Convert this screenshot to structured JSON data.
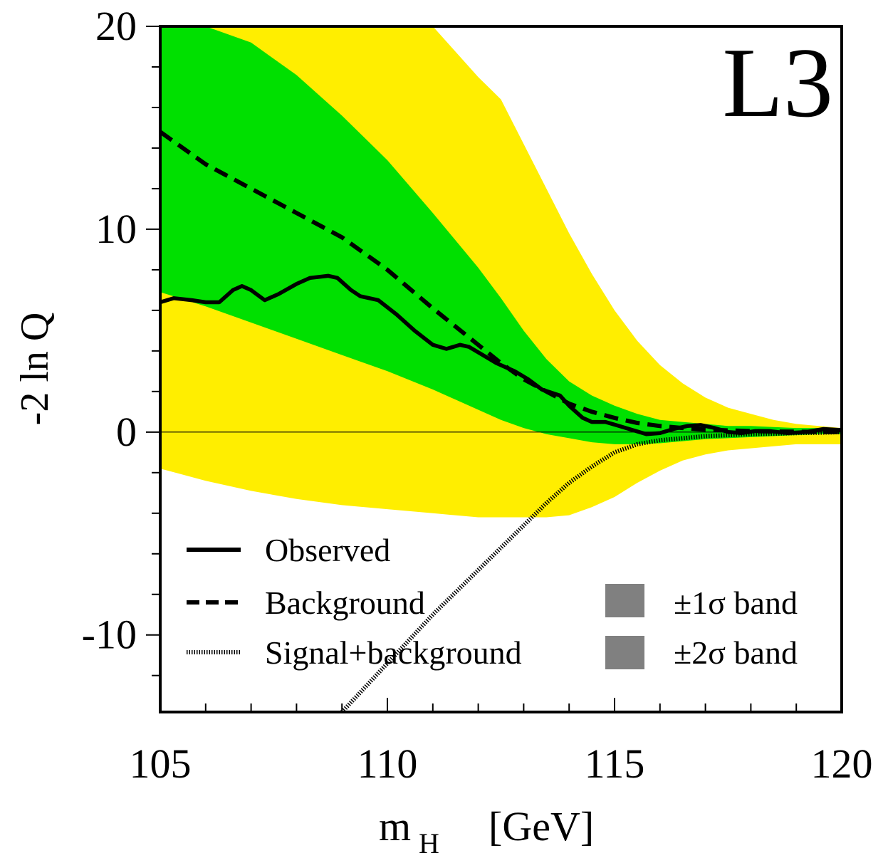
{
  "chart_data": {
    "type": "line",
    "title": "",
    "experiment_label": "L3",
    "xlabel": "m",
    "xlabel_sub": "H",
    "xlabel_unit": "[GeV]",
    "ylabel": "-2 ln Q",
    "xlim": [
      105,
      120
    ],
    "ylim": [
      -13.8,
      20
    ],
    "x_ticks": [
      {
        "value": 105,
        "label": "105"
      },
      {
        "value": 110,
        "label": "110"
      },
      {
        "value": 115,
        "label": "115"
      },
      {
        "value": 120,
        "label": "120"
      }
    ],
    "y_ticks": [
      {
        "value": -10,
        "label": "-10"
      },
      {
        "value": 0,
        "label": "0"
      },
      {
        "value": 10,
        "label": "10"
      },
      {
        "value": 20,
        "label": "20"
      }
    ],
    "x_minor_step": 1,
    "y_minor_step": 2,
    "zero_line": true,
    "colors": {
      "band_1sigma": "#00e000",
      "band_2sigma": "#ffee00",
      "legend_swatch": "#808080",
      "line": "#000000"
    },
    "bands": {
      "two_sigma": {
        "name": "±2σ band",
        "x": [
          105,
          106,
          107,
          108,
          109,
          110,
          111,
          112,
          112.5,
          113,
          113.5,
          114,
          114.5,
          115,
          115.5,
          116,
          116.5,
          117,
          117.5,
          118,
          118.5,
          119,
          119.5,
          120
        ],
        "upper": [
          20,
          20,
          20,
          20,
          20,
          20,
          20,
          17.5,
          16.4,
          14.2,
          12.0,
          9.8,
          7.8,
          6.0,
          4.5,
          3.3,
          2.4,
          1.7,
          1.2,
          0.9,
          0.6,
          0.4,
          0.3,
          0.2
        ],
        "lower": [
          -1.8,
          -2.4,
          -2.9,
          -3.3,
          -3.6,
          -3.8,
          -4.0,
          -4.2,
          -4.2,
          -4.2,
          -4.2,
          -4.1,
          -3.7,
          -3.2,
          -2.5,
          -1.9,
          -1.4,
          -1.1,
          -0.9,
          -0.8,
          -0.7,
          -0.6,
          -0.6,
          -0.6
        ]
      },
      "one_sigma": {
        "name": "±1σ band",
        "x": [
          105,
          106,
          107,
          108,
          109,
          110,
          111,
          112,
          112.5,
          113,
          113.5,
          114,
          114.5,
          115,
          115.5,
          116,
          116.5,
          117,
          117.5,
          118,
          118.5,
          119,
          119.5,
          120
        ],
        "upper": [
          20,
          20,
          19.2,
          17.6,
          15.6,
          13.4,
          10.8,
          8.1,
          6.6,
          5.0,
          3.6,
          2.5,
          1.8,
          1.3,
          0.9,
          0.6,
          0.5,
          0.4,
          0.3,
          0.3,
          0.25,
          0.2,
          0.2,
          0.15
        ],
        "lower": [
          6.9,
          6.2,
          5.4,
          4.6,
          3.8,
          3.0,
          2.1,
          1.1,
          0.6,
          0.2,
          -0.1,
          -0.3,
          -0.5,
          -0.6,
          -0.6,
          -0.55,
          -0.45,
          -0.35,
          -0.3,
          -0.25,
          -0.2,
          -0.15,
          -0.1,
          -0.1
        ]
      }
    },
    "series": [
      {
        "name": "Observed",
        "style": "solid",
        "x": [
          105,
          105.3,
          105.7,
          106.0,
          106.3,
          106.6,
          106.8,
          107.0,
          107.3,
          107.6,
          108.0,
          108.3,
          108.7,
          108.9,
          109.2,
          109.4,
          109.8,
          110.2,
          110.6,
          111.0,
          111.3,
          111.6,
          111.8,
          112.1,
          112.4,
          112.8,
          113.1,
          113.4,
          113.8,
          114.0,
          114.3,
          114.5,
          114.8,
          115.1,
          115.4,
          115.7,
          116.0,
          116.3,
          116.6,
          116.9,
          117.2,
          117.5,
          117.8,
          118.1,
          118.4,
          118.8,
          119.2,
          119.6,
          120.0
        ],
        "y": [
          6.4,
          6.6,
          6.5,
          6.4,
          6.4,
          7.0,
          7.2,
          7.0,
          6.5,
          6.8,
          7.3,
          7.6,
          7.7,
          7.6,
          7.0,
          6.7,
          6.5,
          5.8,
          5.0,
          4.3,
          4.1,
          4.3,
          4.2,
          3.8,
          3.4,
          3.0,
          2.6,
          2.1,
          1.8,
          1.3,
          0.7,
          0.5,
          0.5,
          0.3,
          0.1,
          -0.1,
          -0.05,
          0.15,
          0.3,
          0.35,
          0.2,
          0.0,
          -0.05,
          0.05,
          0.05,
          -0.05,
          0.0,
          0.15,
          0.1
        ]
      },
      {
        "name": "Background",
        "style": "dashed",
        "x": [
          105,
          106,
          107,
          108,
          109,
          110,
          111,
          112,
          112.5,
          113,
          113.5,
          114,
          114.5,
          115,
          115.5,
          116,
          116.5,
          117,
          117.5,
          118,
          118.5,
          119,
          119.5,
          120
        ],
        "y": [
          14.8,
          13.2,
          12.0,
          10.8,
          9.6,
          8.0,
          6.1,
          4.3,
          3.4,
          2.6,
          2.0,
          1.4,
          1.0,
          0.7,
          0.45,
          0.3,
          0.2,
          0.12,
          0.08,
          0.05,
          0.03,
          0.02,
          0.01,
          0.0
        ]
      },
      {
        "name": "Signal+background",
        "style": "dotted",
        "x": [
          109.0,
          109.5,
          110.0,
          110.5,
          111.0,
          111.5,
          112.0,
          112.5,
          113.0,
          113.5,
          114.0,
          114.5,
          115.0,
          115.5,
          116.0,
          116.5,
          117.0,
          117.5,
          118.0,
          118.5,
          119.0,
          119.5,
          120.0
        ],
        "y": [
          -13.8,
          -12.6,
          -11.4,
          -10.2,
          -9.0,
          -7.9,
          -6.8,
          -5.7,
          -4.6,
          -3.5,
          -2.5,
          -1.7,
          -1.0,
          -0.6,
          -0.4,
          -0.3,
          -0.2,
          -0.15,
          -0.1,
          -0.08,
          -0.05,
          -0.03,
          0.0
        ]
      }
    ],
    "legend": {
      "placement": "bottom",
      "lines": [
        {
          "key": "observed",
          "label": "Observed"
        },
        {
          "key": "background",
          "label": "Background"
        },
        {
          "key": "signal",
          "label": "Signal+background"
        }
      ],
      "bands": [
        {
          "key": "one_sigma",
          "label": "±1σ band"
        },
        {
          "key": "two_sigma",
          "label": "±2σ band"
        }
      ]
    }
  }
}
